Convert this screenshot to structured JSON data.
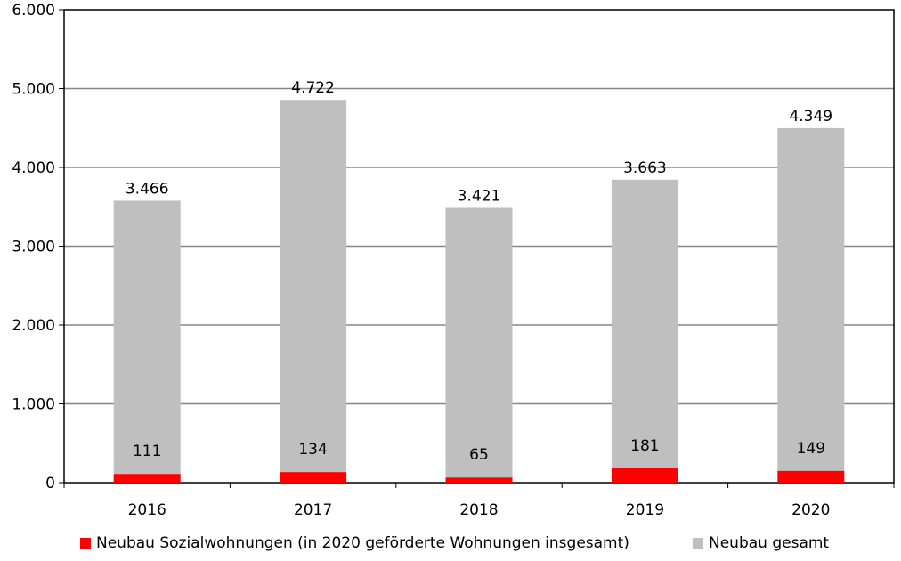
{
  "chart_data": {
    "type": "bar",
    "stacked": true,
    "categories": [
      "2016",
      "2017",
      "2018",
      "2019",
      "2020"
    ],
    "series": [
      {
        "name": "Neubau Sozialwohnungen (in 2020 geförderte Wohnungen insgesamt)",
        "values": [
          111,
          134,
          65,
          181,
          149
        ],
        "labels": [
          "111",
          "134",
          "65",
          "181",
          "149"
        ],
        "color": "#ff0000"
      },
      {
        "name": "Neubau gesamt",
        "values": [
          3466,
          4722,
          3421,
          3663,
          4349
        ],
        "labels": [
          "3.466",
          "4.722",
          "3.421",
          "3.663",
          "4.349"
        ],
        "color": "#bfbfbf"
      }
    ],
    "yticks": [
      "0",
      "1.000",
      "2.000",
      "3.000",
      "4.000",
      "5.000",
      "6.000"
    ],
    "ylim": [
      0,
      6000
    ],
    "grid": true,
    "legend_position": "bottom",
    "title": "",
    "xlabel": "",
    "ylabel": ""
  }
}
